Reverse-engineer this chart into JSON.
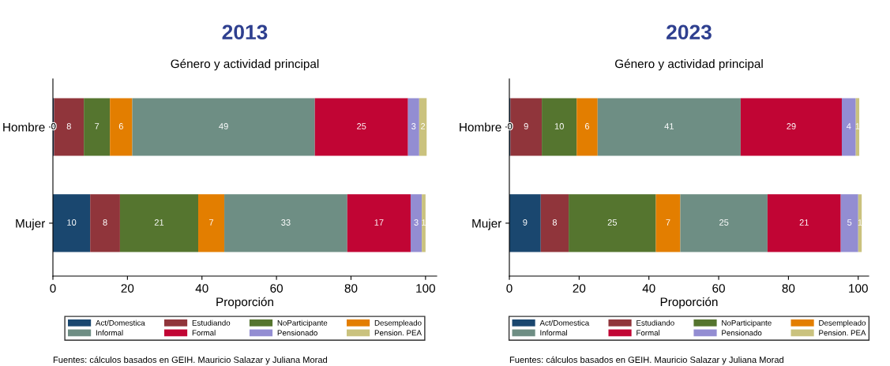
{
  "chart_data": [
    {
      "type": "bar",
      "title": "2013",
      "subtitle": "Género y actividad principal",
      "xlabel": "Proporción",
      "orientation": "horizontal",
      "stacked": true,
      "categories": [
        "Hombre",
        "Mujer"
      ],
      "xlim": [
        0,
        103
      ],
      "xticks": [
        0,
        20,
        40,
        60,
        80,
        100
      ],
      "grid": false,
      "legend": "bottom",
      "series": [
        {
          "name": "Act/Domestica",
          "color": "#1a476f",
          "values": [
            0.3,
            10
          ],
          "value_labels": [
            "0",
            "10"
          ]
        },
        {
          "name": "Estudiando",
          "color": "#90353b",
          "values": [
            8,
            8
          ],
          "value_labels": [
            "8",
            "8"
          ]
        },
        {
          "name": "NoParticipante",
          "color": "#55752f",
          "values": [
            7,
            21
          ],
          "value_labels": [
            "7",
            "21"
          ]
        },
        {
          "name": "Desempleado",
          "color": "#e37e00",
          "values": [
            6,
            7
          ],
          "value_labels": [
            "6",
            "7"
          ]
        },
        {
          "name": "Informal",
          "color": "#6e8e84",
          "values": [
            49,
            33
          ],
          "value_labels": [
            "49",
            "33"
          ]
        },
        {
          "name": "Formal",
          "color": "#c10534",
          "values": [
            25,
            17
          ],
          "value_labels": [
            "25",
            "17"
          ]
        },
        {
          "name": "Pensionado",
          "color": "#938dd2",
          "values": [
            3,
            3
          ],
          "value_labels": [
            "3",
            "3"
          ]
        },
        {
          "name": "Pension. PEA",
          "color": "#cac27e",
          "values": [
            2,
            1
          ],
          "value_labels": [
            "2",
            "1"
          ]
        }
      ],
      "annotations": [
        "Fuentes: cálculos basados en GEIH. Mauricio Salazar y Juliana Morad"
      ]
    },
    {
      "type": "bar",
      "title": "2023",
      "subtitle": "Género y actividad principal",
      "xlabel": "Proporción",
      "orientation": "horizontal",
      "stacked": true,
      "categories": [
        "Hombre",
        "Mujer"
      ],
      "xlim": [
        0,
        103
      ],
      "xticks": [
        0,
        20,
        40,
        60,
        80,
        100
      ],
      "grid": false,
      "legend": "bottom",
      "series": [
        {
          "name": "Act/Domestica",
          "color": "#1a476f",
          "values": [
            0.3,
            9
          ],
          "value_labels": [
            "0",
            "9"
          ]
        },
        {
          "name": "Estudiando",
          "color": "#90353b",
          "values": [
            9,
            8
          ],
          "value_labels": [
            "9",
            "8"
          ]
        },
        {
          "name": "NoParticipante",
          "color": "#55752f",
          "values": [
            10,
            25
          ],
          "value_labels": [
            "10",
            "25"
          ]
        },
        {
          "name": "Desempleado",
          "color": "#e37e00",
          "values": [
            6,
            7
          ],
          "value_labels": [
            "6",
            "7"
          ]
        },
        {
          "name": "Informal",
          "color": "#6e8e84",
          "values": [
            41,
            25
          ],
          "value_labels": [
            "41",
            "25"
          ]
        },
        {
          "name": "Formal",
          "color": "#c10534",
          "values": [
            29,
            21
          ],
          "value_labels": [
            "29",
            "21"
          ]
        },
        {
          "name": "Pensionado",
          "color": "#938dd2",
          "values": [
            4,
            5
          ],
          "value_labels": [
            "4",
            "5"
          ]
        },
        {
          "name": "Pension. PEA",
          "color": "#cac27e",
          "values": [
            1,
            1
          ],
          "value_labels": [
            "1",
            "1"
          ]
        }
      ],
      "annotations": [
        "Fuentes: cálculos basados en GEIH. Mauricio Salazar y Juliana Morad"
      ]
    }
  ]
}
